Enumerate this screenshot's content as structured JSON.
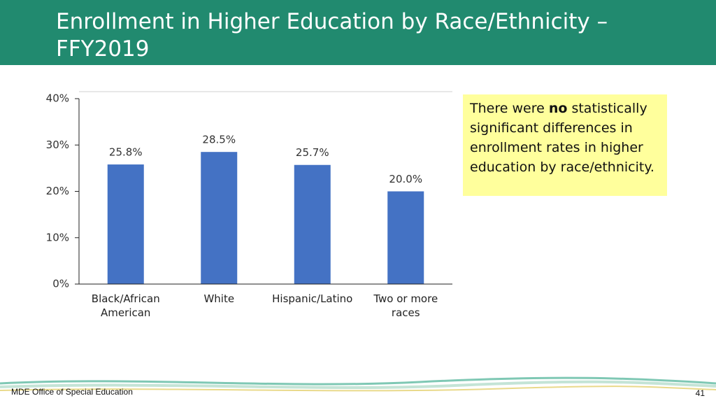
{
  "chart_data": {
    "type": "bar",
    "title": "Enrollment in Higher Education by Race/Ethnicity – FFY2019",
    "categories": [
      "Black/African American",
      "White",
      "Hispanic/Latino",
      "Two or more races"
    ],
    "values": [
      25.8,
      28.5,
      25.7,
      20.0
    ],
    "value_labels": [
      "25.8%",
      "28.5%",
      "25.7%",
      "20.0%"
    ],
    "color": "#4472c4",
    "ylim": [
      0,
      40
    ],
    "yticks": [
      {
        "value": 0,
        "label": "0%"
      },
      {
        "value": 10,
        "label": "10%"
      },
      {
        "value": 20,
        "label": "20%"
      },
      {
        "value": 30,
        "label": "30%"
      },
      {
        "value": 40,
        "label": "40%"
      }
    ],
    "grid": false,
    "annotation": [
      "There were ",
      "no",
      " statistically significant differences in enrollment rates in higher education by race/ethnicity."
    ]
  },
  "footer": "MDE Office of Special Education",
  "page_number": 41
}
